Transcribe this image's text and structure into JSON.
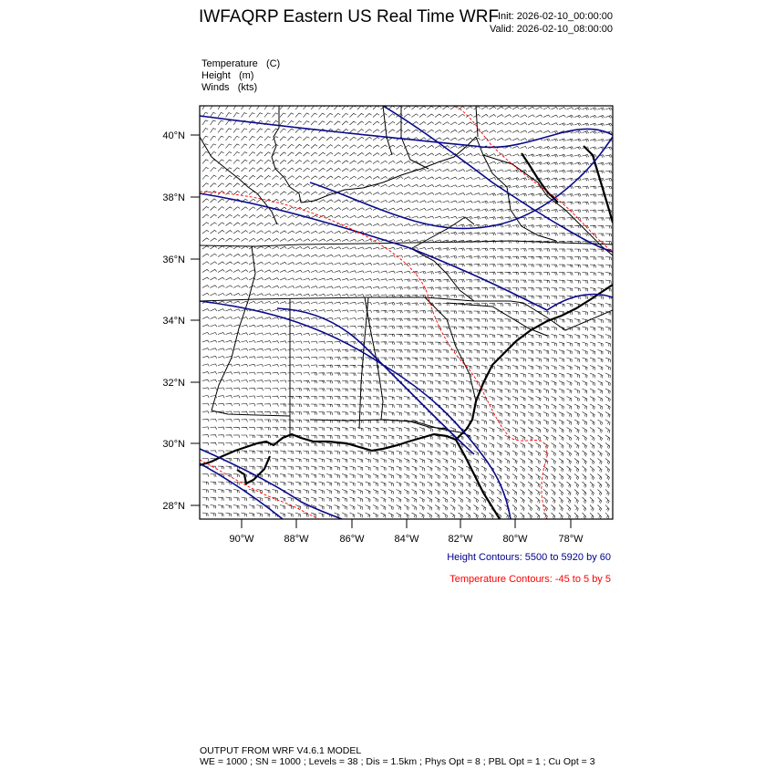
{
  "title": "IWFAQRP Eastern US Real Time WRF",
  "init": "Init: 2026-02-10_00:00:00",
  "valid": "Valid: 2026-02-10_08:00:00",
  "fields": [
    {
      "name": "Temperature",
      "unit": "(C)"
    },
    {
      "name": "Height",
      "unit": "(m)"
    },
    {
      "name": "Winds",
      "unit": "(kts)"
    }
  ],
  "lat_labels": [
    "40°N",
    "38°N",
    "36°N",
    "34°N",
    "32°N",
    "30°N",
    "28°N"
  ],
  "lon_labels": [
    "90°W",
    "88°W",
    "86°W",
    "84°W",
    "82°W",
    "80°W",
    "78°W"
  ],
  "height_contours_note": "Height Contours: 5500 to 5920 by 60",
  "temperature_contours_note": "Temperature Contours: -45 to 5 by 5",
  "footer_line1": "OUTPUT FROM WRF V4.6.1 MODEL",
  "footer_line2": "WE = 1000 ; SN = 1000 ; Levels = 38 ; Dis = 1.5km ; Phys Opt = 8 ; PBL Opt = 1 ; Cu Opt = 3",
  "colors": {
    "height_contour": "#0a0a8c",
    "temperature_contour": "#ff0000",
    "height_note": "#00008b",
    "temperature_note": "#ff0000"
  }
}
